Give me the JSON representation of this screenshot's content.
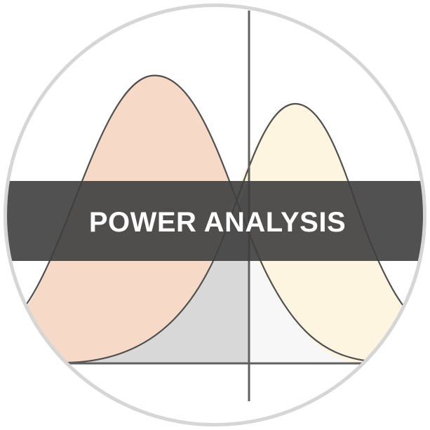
{
  "banner": {
    "title": "POWER ANALYSIS"
  },
  "colors": {
    "background": "#ffffff",
    "ring": "#d6d6d6",
    "null_distribution_fill": "#f6d9c6",
    "alternative_distribution_fill": "#fdf5e0",
    "beta_region_fill": "#d8d8d8",
    "alpha_region_fill": "#f7f7f7",
    "curve_stroke": "#505050",
    "axis_stroke": "#606060",
    "banner_fill": "#3e3e3e",
    "banner_text": "#ffffff"
  },
  "icons": {
    "badge": "power-analysis-distribution-icon"
  }
}
